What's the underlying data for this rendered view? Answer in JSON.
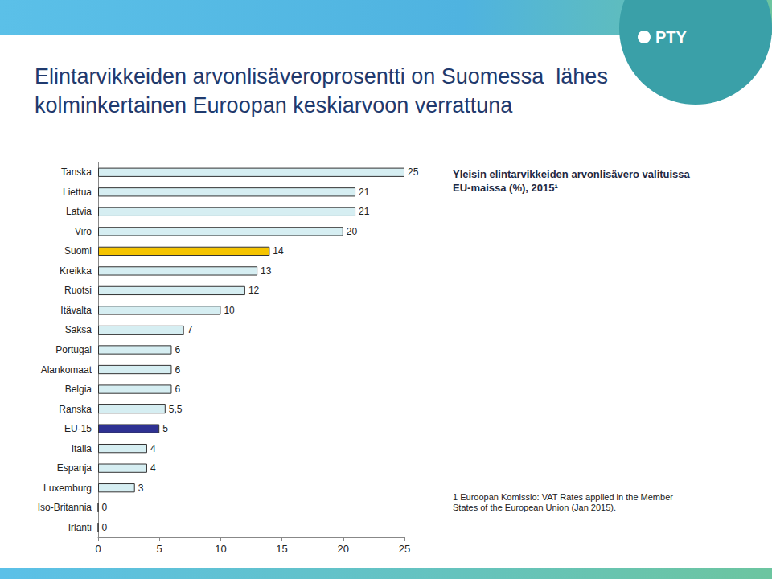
{
  "chart_data": {
    "type": "bar",
    "orientation": "horizontal",
    "title": "Elintarvikkeiden arvonlisäveroprosentti on Suomessa  lähes kolminkertainen Euroopan keskiarvoon verrattuna",
    "subtitle": "Yleisin elintarvikkeiden arvonlisävero valituissa EU-maissa (%), 2015¹",
    "footnote": "1 Euroopan Komissio: VAT Rates applied in the Member States of the European Union (Jan 2015).",
    "logo": "PTY",
    "categories": [
      "Tanska",
      "Liettua",
      "Latvia",
      "Viro",
      "Suomi",
      "Kreikka",
      "Ruotsi",
      "Itävalta",
      "Saksa",
      "Portugal",
      "Alankomaat",
      "Belgia",
      "Ranska",
      "EU-15",
      "Italia",
      "Espanja",
      "Luxemburg",
      "Iso-Britannia",
      "Irlanti"
    ],
    "values": [
      25,
      21,
      21,
      20,
      14,
      13,
      12,
      10,
      7,
      6,
      6,
      6,
      5.5,
      5,
      4,
      4,
      3,
      0,
      0
    ],
    "value_labels": [
      "25",
      "21",
      "21",
      "20",
      "14",
      "13",
      "12",
      "10",
      "7",
      "6",
      "6",
      "6",
      "5,5",
      "5",
      "4",
      "4",
      "3",
      "0",
      "0"
    ],
    "colors": [
      "#d6eef2",
      "#d6eef2",
      "#d6eef2",
      "#d6eef2",
      "#f5c400",
      "#d6eef2",
      "#d6eef2",
      "#d6eef2",
      "#d6eef2",
      "#d6eef2",
      "#d6eef2",
      "#d6eef2",
      "#d6eef2",
      "#2e3192",
      "#d6eef2",
      "#d6eef2",
      "#d6eef2",
      "#d6eef2",
      "#d6eef2"
    ],
    "xlim": [
      0,
      25
    ],
    "xticks": [
      0,
      5,
      10,
      15,
      20,
      25
    ],
    "grid": false,
    "data_labels": true
  }
}
